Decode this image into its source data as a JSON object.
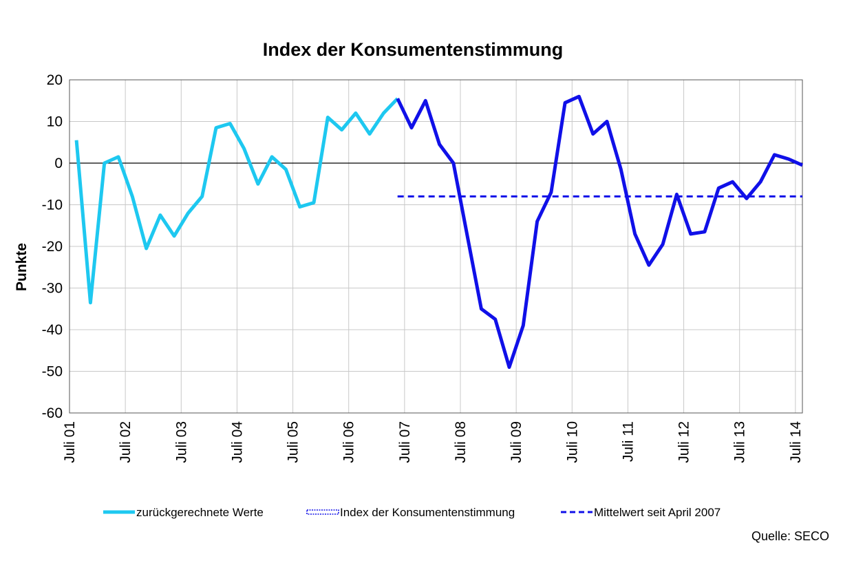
{
  "chart_data": {
    "type": "line",
    "title": "Index der Konsumentenstimmung",
    "ylabel": "Punkte",
    "xlabel": "",
    "ylim": [
      -60,
      20
    ],
    "yticks": [
      20,
      10,
      0,
      -10,
      -20,
      -30,
      -40,
      -50,
      -60
    ],
    "xlim": [
      2001.5,
      2014.625
    ],
    "xtick_labels": [
      "Juli 01",
      "Juli 02",
      "Juli 03",
      "Juli 04",
      "Juli 05",
      "Juli 06",
      "Juli 07",
      "Juli 08",
      "Juli 09",
      "Juli 10",
      "Juli 11",
      "Juli 12",
      "Juli 13",
      "Juli 14"
    ],
    "xtick_values": [
      2001.5,
      2002.5,
      2003.5,
      2004.5,
      2005.5,
      2006.5,
      2007.5,
      2008.5,
      2009.5,
      2010.5,
      2011.5,
      2012.5,
      2013.5,
      2014.5
    ],
    "grid": true,
    "legend_position": "bottom",
    "source": "Quelle: SECO",
    "series": [
      {
        "name": "zurückgerechnete Werte",
        "color": "#1EC8F0",
        "style": "solid",
        "x": [
          2001.625,
          2001.875,
          2002.125,
          2002.375,
          2002.625,
          2002.875,
          2003.125,
          2003.375,
          2003.625,
          2003.875,
          2004.125,
          2004.375,
          2004.625,
          2004.875,
          2005.125,
          2005.375,
          2005.625,
          2005.875,
          2006.125,
          2006.375,
          2006.625,
          2006.875,
          2007.125,
          2007.375
        ],
        "y": [
          5.5,
          -33.5,
          0,
          1.5,
          -8,
          -20.5,
          -12.5,
          -17.5,
          -12,
          -8,
          8.5,
          9.5,
          3.5,
          -5,
          1.5,
          -1.5,
          -10.5,
          -9.5,
          11,
          8,
          12,
          7,
          12,
          15.5
        ]
      },
      {
        "name": "Index der Konsumentenstimmung",
        "color": "#1010E8",
        "style": "solid",
        "x": [
          2007.375,
          2007.625,
          2007.875,
          2008.125,
          2008.375,
          2008.625,
          2008.875,
          2009.125,
          2009.375,
          2009.625,
          2009.875,
          2010.125,
          2010.375,
          2010.625,
          2010.875,
          2011.125,
          2011.375,
          2011.625,
          2011.875,
          2012.125,
          2012.375,
          2012.625,
          2012.875,
          2013.125,
          2013.375,
          2013.625,
          2013.875,
          2014.125,
          2014.375,
          2014.625
        ],
        "y": [
          15.5,
          8.5,
          15,
          4.5,
          0,
          -17.5,
          -35,
          -37.5,
          -49,
          -39,
          -14,
          -7,
          14.5,
          16,
          7,
          10,
          -1.5,
          -17,
          -24.5,
          -19.5,
          -7.5,
          -17,
          -16.5,
          -6,
          -4.5,
          -8.5,
          -4.5,
          2,
          1,
          -0.5
        ]
      },
      {
        "name": "Mittelwert seit April 2007",
        "color": "#1010E8",
        "style": "dashed",
        "x": [
          2007.375,
          2014.625
        ],
        "y": [
          -8,
          -8
        ]
      }
    ]
  }
}
